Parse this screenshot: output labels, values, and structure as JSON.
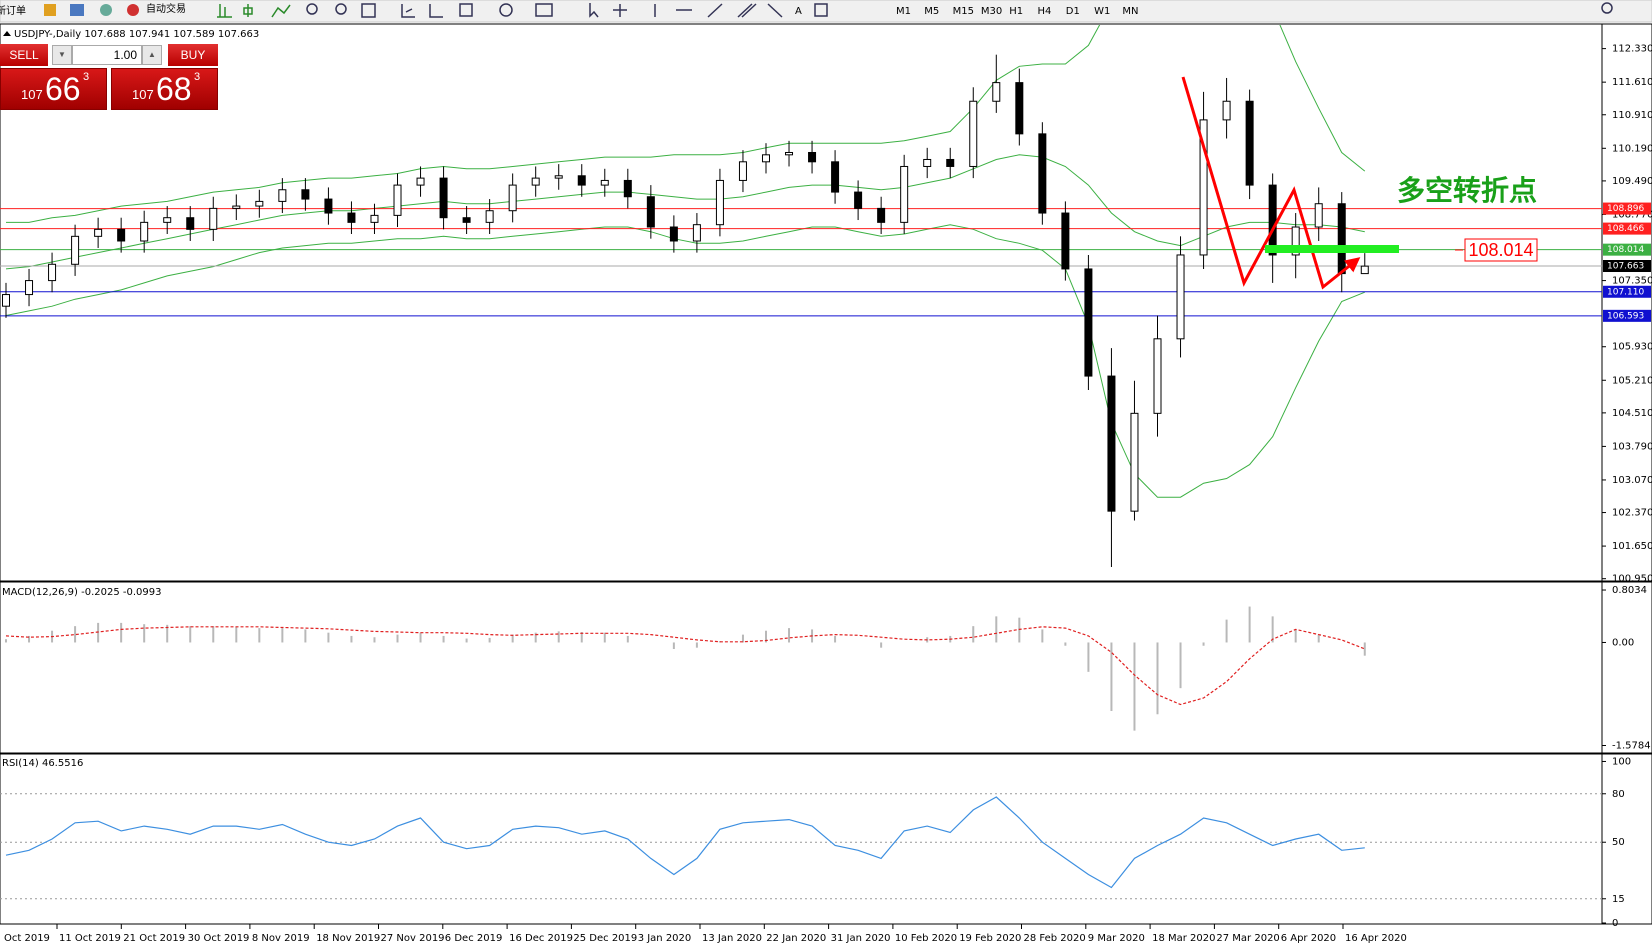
{
  "toolbar": {
    "new_order": "新订单",
    "auto_trading": "自动交易",
    "text_tool": "A",
    "timeframes": [
      "M1",
      "M5",
      "M15",
      "M30",
      "H1",
      "H4",
      "D1",
      "W1",
      "MN"
    ]
  },
  "trade_panel": {
    "sell": "SELL",
    "buy": "BUY",
    "lots": "1.00",
    "sell_price": {
      "big": "107",
      "main": "66",
      "pip": "3"
    },
    "buy_price": {
      "big": "107",
      "main": "68",
      "pip": "3"
    }
  },
  "chart_data": [
    {
      "type": "candlestick",
      "title": "USDJPY-,Daily 107.688 107.941 107.589 107.663",
      "open": [
        106.8,
        107.05,
        107.35,
        107.7,
        108.3,
        108.45,
        108.2,
        108.6,
        108.7,
        108.45,
        108.9,
        108.95,
        109.05,
        109.3,
        109.1,
        108.8,
        108.6,
        108.75,
        109.4,
        109.55,
        108.7,
        108.6,
        108.85,
        109.4,
        109.55,
        109.6,
        109.4,
        109.5,
        109.15,
        108.5,
        108.2,
        108.55,
        109.5,
        109.9,
        110.05,
        110.1,
        109.9,
        109.25,
        108.9,
        108.6,
        109.8,
        109.95,
        109.8,
        111.2,
        111.6,
        110.5,
        108.8,
        107.6,
        105.3,
        102.4,
        104.5,
        106.1,
        107.9,
        110.8,
        111.2,
        109.4,
        107.9,
        108.5,
        109.0,
        107.5
      ],
      "high": [
        107.3,
        107.6,
        107.95,
        108.55,
        108.7,
        108.7,
        108.85,
        108.95,
        108.95,
        109.15,
        109.2,
        109.3,
        109.55,
        109.55,
        109.35,
        109.05,
        109.0,
        109.65,
        109.8,
        109.8,
        108.95,
        109.1,
        109.65,
        109.8,
        109.85,
        109.85,
        109.75,
        109.75,
        109.4,
        108.75,
        108.8,
        109.75,
        110.15,
        110.3,
        110.35,
        110.35,
        110.15,
        109.5,
        109.15,
        110.05,
        110.2,
        110.2,
        111.5,
        112.2,
        111.9,
        110.75,
        109.05,
        107.9,
        105.9,
        105.2,
        106.6,
        108.3,
        111.4,
        111.7,
        111.45,
        109.65,
        108.8,
        109.35,
        109.25,
        107.94
      ],
      "low": [
        106.55,
        106.8,
        107.1,
        107.45,
        108.05,
        107.95,
        107.95,
        108.35,
        108.2,
        108.2,
        108.65,
        108.7,
        108.8,
        108.85,
        108.55,
        108.35,
        108.35,
        108.5,
        109.15,
        108.45,
        108.35,
        108.35,
        108.6,
        109.15,
        109.3,
        109.15,
        109.15,
        108.9,
        108.25,
        107.95,
        107.95,
        108.3,
        109.25,
        109.65,
        109.8,
        109.65,
        109.0,
        108.65,
        108.35,
        108.35,
        109.55,
        109.55,
        109.55,
        110.95,
        110.25,
        108.55,
        107.35,
        105.0,
        101.2,
        102.2,
        104.0,
        105.7,
        107.6,
        110.4,
        109.1,
        107.3,
        107.4,
        108.2,
        107.1,
        107.59
      ],
      "close": [
        107.05,
        107.35,
        107.7,
        108.3,
        108.45,
        108.2,
        108.6,
        108.7,
        108.45,
        108.9,
        108.95,
        109.05,
        109.3,
        109.1,
        108.8,
        108.6,
        108.75,
        109.4,
        109.55,
        108.7,
        108.6,
        108.85,
        109.4,
        109.55,
        109.6,
        109.4,
        109.5,
        109.15,
        108.5,
        108.2,
        108.55,
        109.5,
        109.9,
        110.05,
        110.1,
        109.9,
        109.25,
        108.9,
        108.6,
        109.8,
        109.95,
        109.8,
        111.2,
        111.6,
        110.5,
        108.8,
        107.6,
        105.3,
        102.4,
        104.5,
        106.1,
        107.9,
        110.8,
        111.2,
        109.4,
        107.9,
        108.5,
        109.0,
        107.5,
        107.66
      ],
      "bands": {
        "color": "#3cb043",
        "upper": [
          108.6,
          108.6,
          108.7,
          108.75,
          108.85,
          108.95,
          109.0,
          109.05,
          109.15,
          109.25,
          109.3,
          109.35,
          109.45,
          109.5,
          109.55,
          109.55,
          109.6,
          109.65,
          109.75,
          109.8,
          109.75,
          109.75,
          109.8,
          109.85,
          109.9,
          109.95,
          110.0,
          110.0,
          110.0,
          110.05,
          110.05,
          110.05,
          110.1,
          110.2,
          110.3,
          110.3,
          110.3,
          110.3,
          110.3,
          110.35,
          110.45,
          110.55,
          111.05,
          111.65,
          111.95,
          112.0,
          112.0,
          112.4,
          113.3,
          113.6,
          113.7,
          113.5,
          113.6,
          113.9,
          113.8,
          113.2,
          112.05,
          111.05,
          110.1,
          109.7
        ],
        "middle": [
          107.6,
          107.65,
          107.75,
          107.85,
          107.95,
          108.05,
          108.15,
          108.25,
          108.35,
          108.45,
          108.55,
          108.65,
          108.75,
          108.8,
          108.85,
          108.85,
          108.9,
          108.95,
          109.0,
          109.05,
          109.0,
          109.0,
          109.05,
          109.1,
          109.15,
          109.2,
          109.25,
          109.25,
          109.2,
          109.15,
          109.1,
          109.1,
          109.15,
          109.25,
          109.35,
          109.4,
          109.4,
          109.35,
          109.3,
          109.35,
          109.45,
          109.55,
          109.75,
          109.95,
          110.05,
          110.0,
          109.8,
          109.4,
          108.8,
          108.4,
          108.2,
          108.1,
          108.3,
          108.5,
          108.6,
          108.6,
          108.55,
          108.55,
          108.5,
          108.4
        ],
        "lower": [
          106.6,
          106.7,
          106.8,
          106.95,
          107.05,
          107.15,
          107.3,
          107.45,
          107.55,
          107.65,
          107.8,
          107.95,
          108.05,
          108.1,
          108.15,
          108.15,
          108.2,
          108.25,
          108.25,
          108.3,
          108.25,
          108.25,
          108.3,
          108.35,
          108.4,
          108.45,
          108.5,
          108.5,
          108.4,
          108.25,
          108.15,
          108.15,
          108.2,
          108.3,
          108.4,
          108.5,
          108.5,
          108.4,
          108.3,
          108.35,
          108.45,
          108.55,
          108.45,
          108.25,
          108.15,
          108.0,
          107.6,
          106.4,
          104.3,
          103.2,
          102.7,
          102.7,
          103.0,
          103.1,
          103.4,
          104.0,
          105.05,
          106.05,
          106.9,
          107.1
        ]
      },
      "ylim": [
        100.922,
        112.837
      ],
      "yticks": [
        {
          "value": 112.33,
          "label": "112.330"
        },
        {
          "value": 111.61,
          "label": "111.610"
        },
        {
          "value": 110.91,
          "label": "110.910"
        },
        {
          "value": 110.19,
          "label": "110.190"
        },
        {
          "value": 109.49,
          "label": "109.490"
        },
        {
          "value": 108.77,
          "label": "108.770"
        },
        {
          "value": 107.35,
          "label": "107.350"
        },
        {
          "value": 105.93,
          "label": "105.930"
        },
        {
          "value": 105.21,
          "label": "105.210"
        },
        {
          "value": 104.51,
          "label": "104.510"
        },
        {
          "value": 103.79,
          "label": "103.790"
        },
        {
          "value": 103.07,
          "label": "103.070"
        },
        {
          "value": 102.37,
          "label": "102.370"
        },
        {
          "value": 101.65,
          "label": "101.650"
        },
        {
          "value": 100.95,
          "label": "100.950"
        }
      ],
      "levels": [
        {
          "value": 108.896,
          "color": "#ff2020"
        },
        {
          "value": 108.466,
          "color": "#ff2020"
        },
        {
          "value": 108.014,
          "color": "#3cb043"
        },
        {
          "value": 107.663,
          "color": "#000000"
        },
        {
          "value": 107.11,
          "label": "107.110",
          "color": "#1010d0"
        },
        {
          "value": 106.593,
          "color": "#1010d0"
        }
      ],
      "annotations": [
        {
          "text": "多空转折点"
        },
        {
          "text": "108.014"
        }
      ]
    },
    {
      "type": "macd",
      "title": "MACD(12,26,9) -0.2025 -0.0993",
      "values": [
        0.05,
        0.1,
        0.18,
        0.25,
        0.3,
        0.3,
        0.28,
        0.27,
        0.25,
        0.25,
        0.24,
        0.22,
        0.22,
        0.2,
        0.15,
        0.1,
        0.08,
        0.12,
        0.15,
        0.1,
        0.06,
        0.07,
        0.12,
        0.15,
        0.17,
        0.16,
        0.15,
        0.1,
        0.0,
        -0.1,
        -0.08,
        0.02,
        0.12,
        0.18,
        0.22,
        0.2,
        0.1,
        0.0,
        -0.08,
        0.0,
        0.08,
        0.1,
        0.25,
        0.4,
        0.38,
        0.2,
        -0.05,
        -0.45,
        -1.05,
        -1.35,
        -1.1,
        -0.7,
        -0.05,
        0.35,
        0.55,
        0.4,
        0.2,
        0.12,
        0.0,
        -0.2025
      ],
      "signal": [
        0.1,
        0.08,
        0.09,
        0.12,
        0.16,
        0.2,
        0.22,
        0.23,
        0.24,
        0.24,
        0.24,
        0.24,
        0.23,
        0.22,
        0.21,
        0.19,
        0.17,
        0.16,
        0.15,
        0.15,
        0.14,
        0.12,
        0.11,
        0.12,
        0.13,
        0.14,
        0.14,
        0.14,
        0.12,
        0.08,
        0.04,
        0.01,
        0.01,
        0.03,
        0.07,
        0.1,
        0.12,
        0.11,
        0.08,
        0.05,
        0.04,
        0.05,
        0.08,
        0.14,
        0.2,
        0.24,
        0.22,
        0.1,
        -0.15,
        -0.5,
        -0.8,
        -0.95,
        -0.85,
        -0.6,
        -0.25,
        0.05,
        0.2,
        0.12,
        0.04,
        -0.0993
      ],
      "color": "#b8b8b8",
      "signal_color": "#e02020",
      "ylim": [
        -1.678,
        0.911
      ],
      "yticks": [
        0.8034,
        {
          "value": 0,
          "label": "0.00"
        },
        -1.5784
      ]
    },
    {
      "type": "rsi",
      "title": "RSI(14) 46.5516",
      "values": [
        42,
        45,
        52,
        62,
        63,
        57,
        60,
        58,
        55,
        60,
        60,
        58,
        61,
        55,
        50,
        48,
        52,
        60,
        65,
        50,
        46,
        48,
        58,
        60,
        59,
        55,
        57,
        52,
        40,
        30,
        40,
        58,
        62,
        63,
        64,
        60,
        48,
        45,
        40,
        57,
        60,
        56,
        70,
        78,
        65,
        50,
        40,
        30,
        22,
        40,
        48,
        55,
        65,
        62,
        55,
        48,
        52,
        55,
        45,
        46.5516
      ],
      "color": "#3d8fe0",
      "ylim": [
        0,
        104
      ],
      "yticks": [
        100,
        80,
        50,
        15,
        0
      ],
      "x_labels": [
        "Oct 2019",
        "11 Oct 2019",
        "21 Oct 2019",
        "30 Oct 2019",
        "8 Nov 2019",
        "18 Nov 2019",
        "27 Nov 2019",
        "6 Dec 2019",
        "16 Dec 2019",
        "25 Dec 2019",
        "3 Jan 2020",
        "13 Jan 2020",
        "22 Jan 2020",
        "31 Jan 2020",
        "10 Feb 2020",
        "19 Feb 2020",
        "28 Feb 2020",
        "9 Mar 2020",
        "18 Mar 2020",
        "27 Mar 2020",
        "6 Apr 2020",
        "16 Apr 2020"
      ]
    }
  ]
}
